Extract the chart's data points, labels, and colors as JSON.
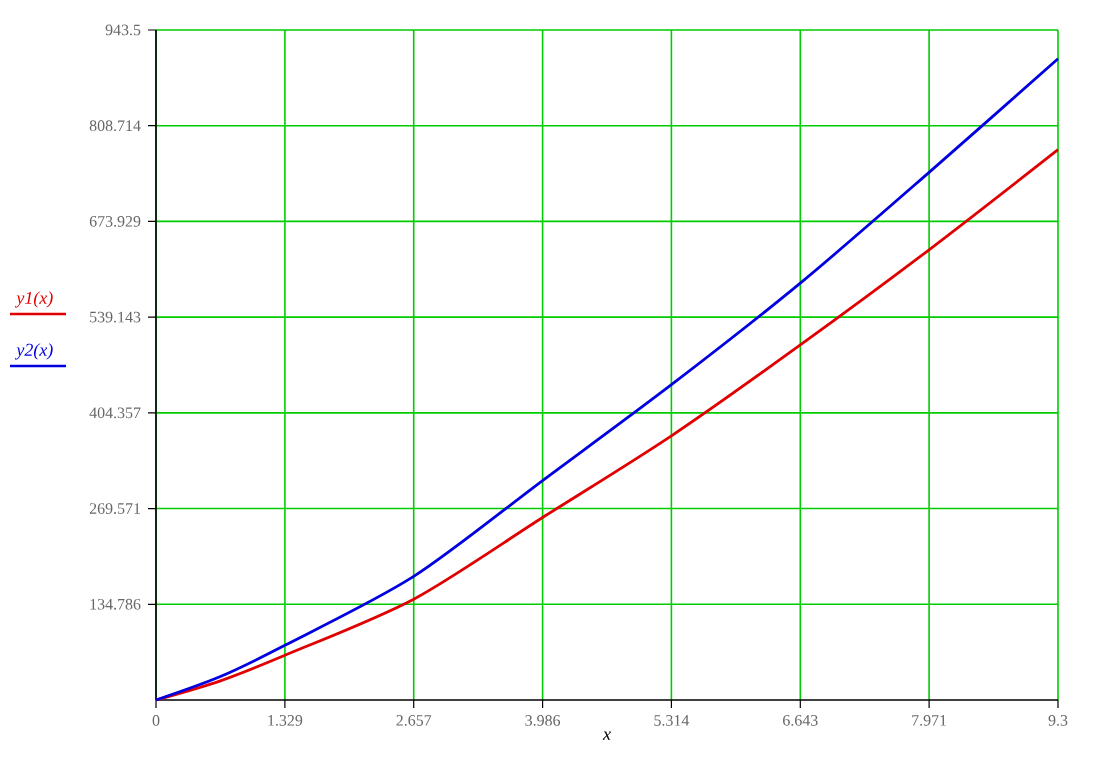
{
  "chart_data": {
    "type": "line",
    "xlabel": "x",
    "x": [
      0,
      0.664,
      1.329,
      2.657,
      3.986,
      5.314,
      6.643,
      7.971,
      9.3
    ],
    "series": [
      {
        "name": "y1(x)",
        "color": "#e00000",
        "values": [
          0,
          27,
          63,
          142,
          257,
          372,
          500,
          634,
          775
        ]
      },
      {
        "name": "y2(x)",
        "color": "#0000e0",
        "values": [
          0,
          33,
          77,
          174,
          309,
          444,
          587,
          743,
          903
        ]
      }
    ],
    "xlim": [
      0,
      9.3
    ],
    "ylim": [
      0,
      943.5
    ],
    "xticks": [
      0,
      1.329,
      2.657,
      3.986,
      5.314,
      6.643,
      7.971,
      9.3
    ],
    "yticks": [
      134.786,
      269.571,
      404.357,
      539.143,
      673.929,
      808.714,
      943.5
    ],
    "grid": true,
    "legend": "left",
    "marker": "none",
    "line_style": "solid"
  }
}
